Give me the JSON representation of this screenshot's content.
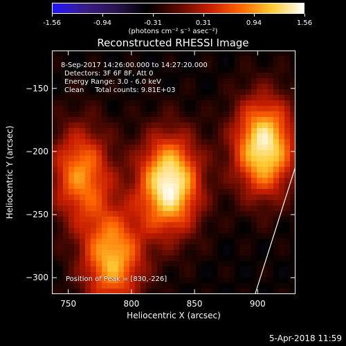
{
  "chart_data": {
    "type": "heatmap",
    "title": "Reconstructed RHESSI Image",
    "xlabel": "Heliocentric X (arcsec)",
    "ylabel": "Heliocentric Y (arcsec)",
    "xlim": [
      737,
      930
    ],
    "ylim": [
      -313,
      -120
    ],
    "x_ticks": [
      750,
      800,
      850,
      900
    ],
    "y_ticks": [
      -150,
      -200,
      -250,
      -300
    ],
    "colorbar": {
      "label": "(photons cm⁻² s⁻¹ asec⁻²)",
      "range": [
        -1.56,
        1.56
      ],
      "tick_labels": [
        "-1.56",
        "-0.94",
        "-0.31",
        "0.31",
        "0.94",
        "1.56"
      ]
    },
    "annotations": [
      "8-Sep-2017 14:26:00.000 to 14:27:20.000",
      "Detectors: 3F 6F 8F, Att 0",
      "Energy Range: 3.0 - 6.0 keV",
      "Clean     Total counts: 9.81E+03"
    ],
    "peak_label": "Position of Peak = [830,-226]",
    "peaks": [
      {
        "x": 830,
        "y": -226,
        "value": 1.56
      },
      {
        "x": 905,
        "y": -196,
        "value": 1.45
      },
      {
        "x": 785,
        "y": -285,
        "value": 1.1
      },
      {
        "x": 760,
        "y": -218,
        "value": 0.9
      }
    ],
    "limb_line": [
      [
        898,
        -313
      ],
      [
        930,
        -212
      ]
    ],
    "timestamp": "5-Apr-2018 11:59"
  },
  "colors": {
    "background": "#000000",
    "text": "#ffffff",
    "colormap": [
      "#1f14ff",
      "#3a1c8a",
      "#2a1450",
      "#000000",
      "#5a0a00",
      "#c81e00",
      "#ff6600",
      "#ffcc33",
      "#ffffff"
    ]
  }
}
